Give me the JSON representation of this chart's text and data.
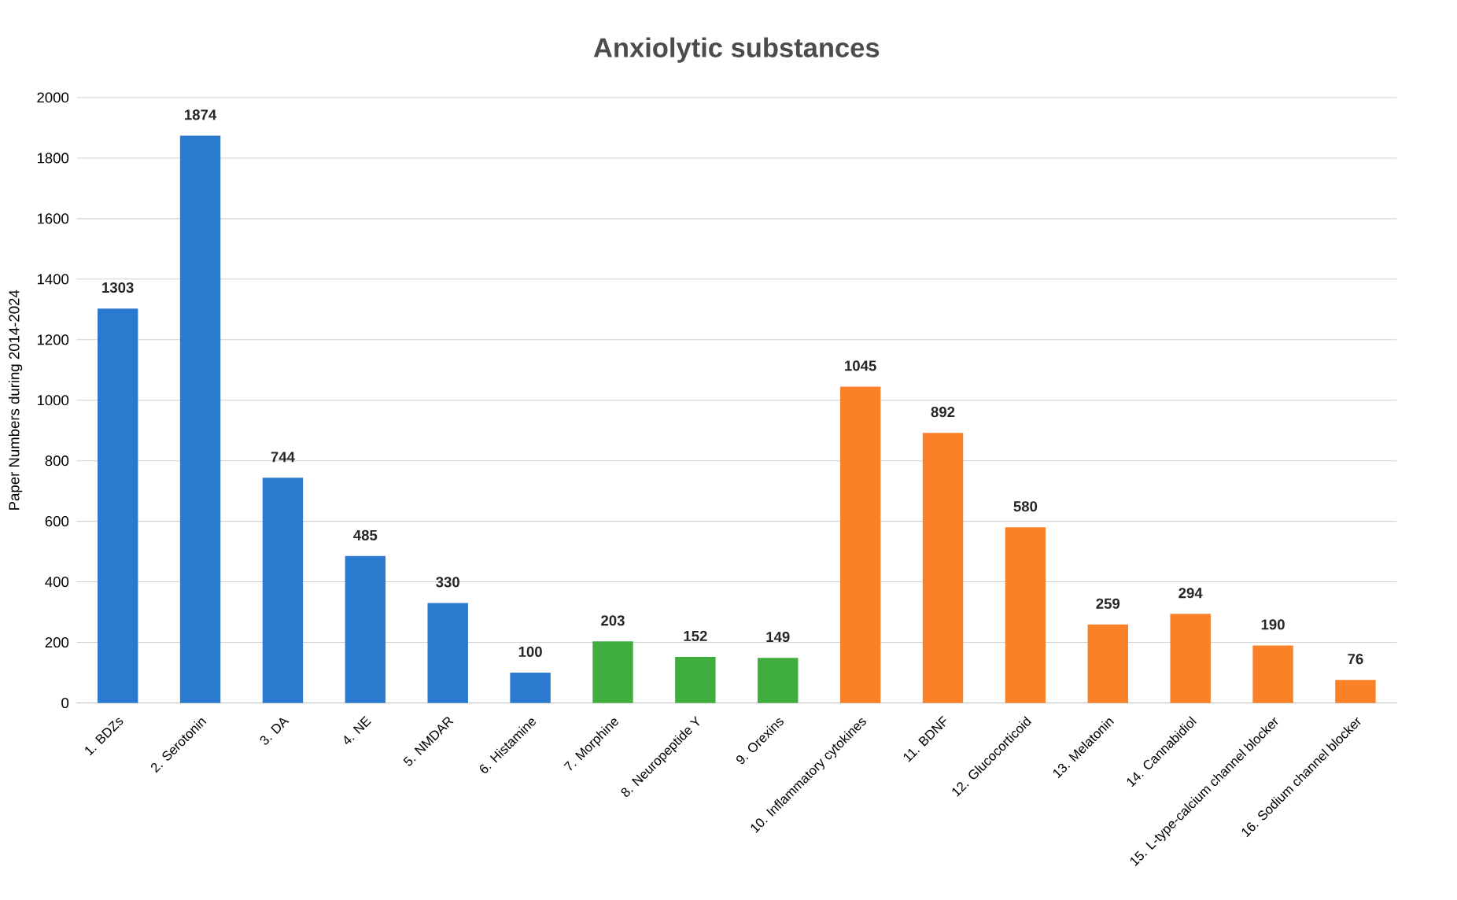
{
  "chart_data": {
    "type": "bar",
    "title": "Anxiolytic substances",
    "ylabel": "Paper Numbers during 2014-2024",
    "categories": [
      "1. BDZs",
      "2. Serotonin",
      "3. DA",
      "4. NE",
      "5. NMDAR",
      "6. Histamine",
      "7. Morphine",
      "8. Neuropeptide Y",
      "9. Orexins",
      "10. Inflammatory cytokines",
      "11. BDNF",
      "12. Glucocorticoid",
      "13. Melatonin",
      "14. Cannabidiol",
      "15. L-type-calcium channel blocker",
      "16. Sodium channel blocker"
    ],
    "values": [
      1303,
      1874,
      744,
      485,
      330,
      100,
      203,
      152,
      149,
      1045,
      892,
      580,
      259,
      294,
      190,
      76
    ],
    "colors": [
      "#2a7ad0",
      "#2a7ad0",
      "#2a7ad0",
      "#2a7ad0",
      "#2a7ad0",
      "#2a7ad0",
      "#3fae3f",
      "#3fae3f",
      "#3fae3f",
      "#fa8128",
      "#fa8128",
      "#fa8128",
      "#fa8128",
      "#fa8128",
      "#fa8128",
      "#fa8128"
    ],
    "ylim": [
      0,
      2000
    ],
    "yticks": [
      0,
      200,
      400,
      600,
      800,
      1000,
      1200,
      1400,
      1600,
      1800,
      2000
    ],
    "grid": "y",
    "data_labels": true
  }
}
